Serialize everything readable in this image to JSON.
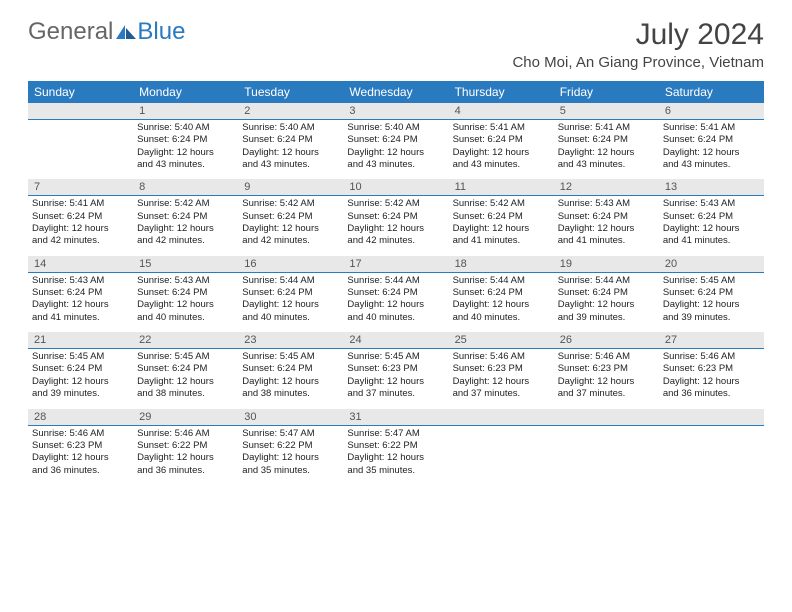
{
  "logo": {
    "general": "General",
    "blue": "Blue"
  },
  "title": "July 2024",
  "location": "Cho Moi, An Giang Province, Vietnam",
  "colors": {
    "accent": "#2a7ac0",
    "header_bg": "#2a7ac0",
    "daynum_bg": "#e8e8e8",
    "text": "#333333",
    "bg": "#ffffff"
  },
  "day_headers": [
    "Sunday",
    "Monday",
    "Tuesday",
    "Wednesday",
    "Thursday",
    "Friday",
    "Saturday"
  ],
  "weeks": [
    {
      "nums": [
        "",
        "1",
        "2",
        "3",
        "4",
        "5",
        "6"
      ],
      "cells": [
        null,
        {
          "sunrise": "Sunrise: 5:40 AM",
          "sunset": "Sunset: 6:24 PM",
          "d1": "Daylight: 12 hours",
          "d2": "and 43 minutes."
        },
        {
          "sunrise": "Sunrise: 5:40 AM",
          "sunset": "Sunset: 6:24 PM",
          "d1": "Daylight: 12 hours",
          "d2": "and 43 minutes."
        },
        {
          "sunrise": "Sunrise: 5:40 AM",
          "sunset": "Sunset: 6:24 PM",
          "d1": "Daylight: 12 hours",
          "d2": "and 43 minutes."
        },
        {
          "sunrise": "Sunrise: 5:41 AM",
          "sunset": "Sunset: 6:24 PM",
          "d1": "Daylight: 12 hours",
          "d2": "and 43 minutes."
        },
        {
          "sunrise": "Sunrise: 5:41 AM",
          "sunset": "Sunset: 6:24 PM",
          "d1": "Daylight: 12 hours",
          "d2": "and 43 minutes."
        },
        {
          "sunrise": "Sunrise: 5:41 AM",
          "sunset": "Sunset: 6:24 PM",
          "d1": "Daylight: 12 hours",
          "d2": "and 43 minutes."
        }
      ]
    },
    {
      "nums": [
        "7",
        "8",
        "9",
        "10",
        "11",
        "12",
        "13"
      ],
      "cells": [
        {
          "sunrise": "Sunrise: 5:41 AM",
          "sunset": "Sunset: 6:24 PM",
          "d1": "Daylight: 12 hours",
          "d2": "and 42 minutes."
        },
        {
          "sunrise": "Sunrise: 5:42 AM",
          "sunset": "Sunset: 6:24 PM",
          "d1": "Daylight: 12 hours",
          "d2": "and 42 minutes."
        },
        {
          "sunrise": "Sunrise: 5:42 AM",
          "sunset": "Sunset: 6:24 PM",
          "d1": "Daylight: 12 hours",
          "d2": "and 42 minutes."
        },
        {
          "sunrise": "Sunrise: 5:42 AM",
          "sunset": "Sunset: 6:24 PM",
          "d1": "Daylight: 12 hours",
          "d2": "and 42 minutes."
        },
        {
          "sunrise": "Sunrise: 5:42 AM",
          "sunset": "Sunset: 6:24 PM",
          "d1": "Daylight: 12 hours",
          "d2": "and 41 minutes."
        },
        {
          "sunrise": "Sunrise: 5:43 AM",
          "sunset": "Sunset: 6:24 PM",
          "d1": "Daylight: 12 hours",
          "d2": "and 41 minutes."
        },
        {
          "sunrise": "Sunrise: 5:43 AM",
          "sunset": "Sunset: 6:24 PM",
          "d1": "Daylight: 12 hours",
          "d2": "and 41 minutes."
        }
      ]
    },
    {
      "nums": [
        "14",
        "15",
        "16",
        "17",
        "18",
        "19",
        "20"
      ],
      "cells": [
        {
          "sunrise": "Sunrise: 5:43 AM",
          "sunset": "Sunset: 6:24 PM",
          "d1": "Daylight: 12 hours",
          "d2": "and 41 minutes."
        },
        {
          "sunrise": "Sunrise: 5:43 AM",
          "sunset": "Sunset: 6:24 PM",
          "d1": "Daylight: 12 hours",
          "d2": "and 40 minutes."
        },
        {
          "sunrise": "Sunrise: 5:44 AM",
          "sunset": "Sunset: 6:24 PM",
          "d1": "Daylight: 12 hours",
          "d2": "and 40 minutes."
        },
        {
          "sunrise": "Sunrise: 5:44 AM",
          "sunset": "Sunset: 6:24 PM",
          "d1": "Daylight: 12 hours",
          "d2": "and 40 minutes."
        },
        {
          "sunrise": "Sunrise: 5:44 AM",
          "sunset": "Sunset: 6:24 PM",
          "d1": "Daylight: 12 hours",
          "d2": "and 40 minutes."
        },
        {
          "sunrise": "Sunrise: 5:44 AM",
          "sunset": "Sunset: 6:24 PM",
          "d1": "Daylight: 12 hours",
          "d2": "and 39 minutes."
        },
        {
          "sunrise": "Sunrise: 5:45 AM",
          "sunset": "Sunset: 6:24 PM",
          "d1": "Daylight: 12 hours",
          "d2": "and 39 minutes."
        }
      ]
    },
    {
      "nums": [
        "21",
        "22",
        "23",
        "24",
        "25",
        "26",
        "27"
      ],
      "cells": [
        {
          "sunrise": "Sunrise: 5:45 AM",
          "sunset": "Sunset: 6:24 PM",
          "d1": "Daylight: 12 hours",
          "d2": "and 39 minutes."
        },
        {
          "sunrise": "Sunrise: 5:45 AM",
          "sunset": "Sunset: 6:24 PM",
          "d1": "Daylight: 12 hours",
          "d2": "and 38 minutes."
        },
        {
          "sunrise": "Sunrise: 5:45 AM",
          "sunset": "Sunset: 6:24 PM",
          "d1": "Daylight: 12 hours",
          "d2": "and 38 minutes."
        },
        {
          "sunrise": "Sunrise: 5:45 AM",
          "sunset": "Sunset: 6:23 PM",
          "d1": "Daylight: 12 hours",
          "d2": "and 37 minutes."
        },
        {
          "sunrise": "Sunrise: 5:46 AM",
          "sunset": "Sunset: 6:23 PM",
          "d1": "Daylight: 12 hours",
          "d2": "and 37 minutes."
        },
        {
          "sunrise": "Sunrise: 5:46 AM",
          "sunset": "Sunset: 6:23 PM",
          "d1": "Daylight: 12 hours",
          "d2": "and 37 minutes."
        },
        {
          "sunrise": "Sunrise: 5:46 AM",
          "sunset": "Sunset: 6:23 PM",
          "d1": "Daylight: 12 hours",
          "d2": "and 36 minutes."
        }
      ]
    },
    {
      "nums": [
        "28",
        "29",
        "30",
        "31",
        "",
        "",
        ""
      ],
      "cells": [
        {
          "sunrise": "Sunrise: 5:46 AM",
          "sunset": "Sunset: 6:23 PM",
          "d1": "Daylight: 12 hours",
          "d2": "and 36 minutes."
        },
        {
          "sunrise": "Sunrise: 5:46 AM",
          "sunset": "Sunset: 6:22 PM",
          "d1": "Daylight: 12 hours",
          "d2": "and 36 minutes."
        },
        {
          "sunrise": "Sunrise: 5:47 AM",
          "sunset": "Sunset: 6:22 PM",
          "d1": "Daylight: 12 hours",
          "d2": "and 35 minutes."
        },
        {
          "sunrise": "Sunrise: 5:47 AM",
          "sunset": "Sunset: 6:22 PM",
          "d1": "Daylight: 12 hours",
          "d2": "and 35 minutes."
        },
        null,
        null,
        null
      ]
    }
  ]
}
